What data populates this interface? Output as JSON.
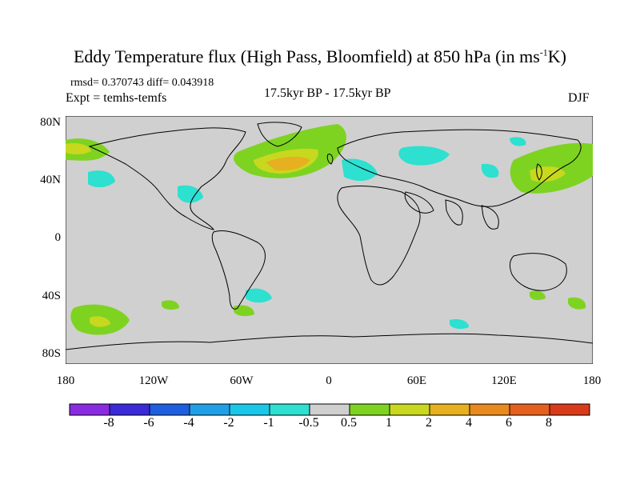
{
  "title_main": "Eddy Temperature flux (High Pass, Bloomfield) at 850 hPa (in ms",
  "title_sup": "-1",
  "title_end": "K)",
  "stats": "rmsd= 0.370743 diff= 0.043918",
  "expt": "Expt = temhs-temfs",
  "period": "17.5kyr BP - 17.5kyr BP",
  "season": "DJF",
  "lat_labels": [
    "80N",
    "40N",
    "0",
    "40S",
    "80S"
  ],
  "lon_labels": [
    "180",
    "120W",
    "60W",
    "0",
    "60E",
    "120E",
    "180"
  ],
  "colorbar": {
    "labels": [
      "-8",
      "-6",
      "-4",
      "-2",
      "-1",
      "-0.5",
      "0.5",
      "1",
      "2",
      "4",
      "6",
      "8"
    ],
    "colors": [
      "#8a2be2",
      "#3a2ad8",
      "#1e5fe0",
      "#1fa0e6",
      "#19c7e8",
      "#2de0d0",
      "#cfcfcf",
      "#7ed321",
      "#c8d81e",
      "#e6b020",
      "#e88a1e",
      "#e5601e",
      "#d83a1a"
    ]
  },
  "map_colors": {
    "background": "#d0d0d0",
    "coastline": "#000000"
  }
}
